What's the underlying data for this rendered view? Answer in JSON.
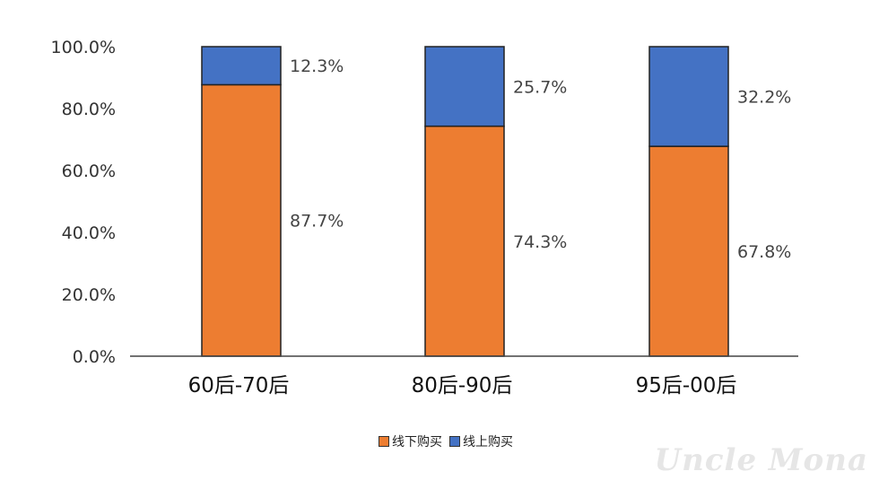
{
  "chart_data": {
    "type": "bar",
    "stacked": true,
    "categories": [
      "60后-70后",
      "80后-90后",
      "95后-00后"
    ],
    "series": [
      {
        "name": "线下购买",
        "color": "#ED7D31",
        "values": [
          87.7,
          74.3,
          67.8
        ],
        "labels": [
          "87.7%",
          "74.3%",
          "67.8%"
        ]
      },
      {
        "name": "线上购买",
        "color": "#4472C4",
        "values": [
          12.3,
          25.7,
          32.2
        ],
        "labels": [
          "12.3%",
          "25.7%",
          "32.2%"
        ]
      }
    ],
    "yticks": [
      "0.0%",
      "20.0%",
      "40.0%",
      "60.0%",
      "80.0%",
      "100.0%"
    ],
    "ylim": [
      0,
      100
    ],
    "legend_position": "bottom",
    "grid": false
  },
  "watermark": "Uncle Mona"
}
